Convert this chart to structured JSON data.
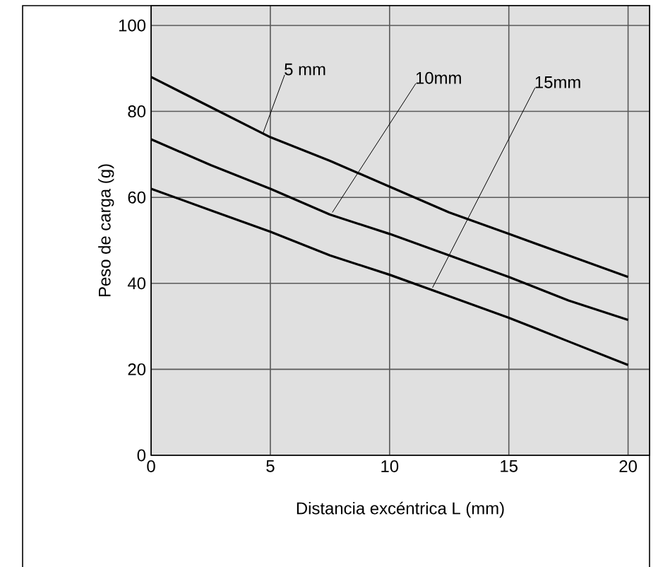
{
  "chart_data": {
    "type": "line",
    "xlabel": "Distancia excéntrica L (mm)",
    "ylabel": "Peso de carga (g)",
    "x": [
      0,
      2.5,
      5,
      7.5,
      10,
      12.5,
      15,
      17.5,
      20
    ],
    "series": [
      {
        "name": "5 mm",
        "color": "#000000",
        "values": [
          88,
          81,
          74,
          68.5,
          62.5,
          56.5,
          51.5,
          46.5,
          41.5
        ]
      },
      {
        "name": "10mm",
        "color": "#000000",
        "values": [
          73.5,
          67.5,
          62,
          56,
          51.5,
          46.5,
          41.5,
          36,
          31.5
        ]
      },
      {
        "name": "15mm",
        "color": "#000000",
        "values": [
          62,
          57,
          52,
          46.5,
          42,
          37,
          32,
          26.5,
          21
        ]
      }
    ],
    "xlim": [
      0,
      20.9
    ],
    "ylim": [
      0,
      104.6
    ],
    "xticks": [
      0,
      5,
      10,
      15,
      20
    ],
    "yticks": [
      0,
      20,
      40,
      60,
      80,
      100
    ],
    "grid": true,
    "legend": false,
    "marker": "none",
    "line_style": "solid"
  }
}
